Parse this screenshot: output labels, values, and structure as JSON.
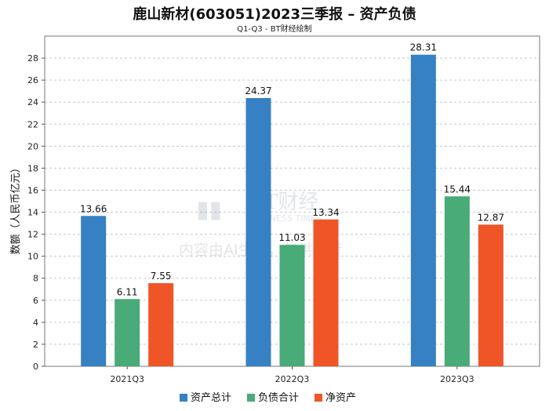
{
  "header": {
    "title": "鹿山新材(603051)2023三季报 – 资产负债",
    "subtitle": "Q1-Q3 - BT财经绘制"
  },
  "watermark": {
    "brand": "BT财经",
    "brand_en": "BUSINESS TIMES",
    "notice": "内容由AI生成，仅供参考"
  },
  "chart_data": {
    "type": "bar",
    "categories": [
      "2021Q3",
      "2022Q3",
      "2023Q3"
    ],
    "series": [
      {
        "name": "资产总计",
        "values": [
          13.66,
          24.37,
          28.31
        ],
        "color": "#3581c3"
      },
      {
        "name": "负债合计",
        "values": [
          6.11,
          11.03,
          15.44
        ],
        "color": "#48ab78"
      },
      {
        "name": "净资产",
        "values": [
          7.55,
          13.34,
          12.87
        ],
        "color": "#f05527"
      }
    ],
    "ylabel": "数额（人民币亿元）",
    "ylim": [
      0,
      30
    ],
    "yticks": [
      0,
      2,
      4,
      6,
      8,
      10,
      12,
      14,
      16,
      18,
      20,
      22,
      24,
      26,
      28
    ],
    "grid": true,
    "legend_position": "bottom"
  }
}
